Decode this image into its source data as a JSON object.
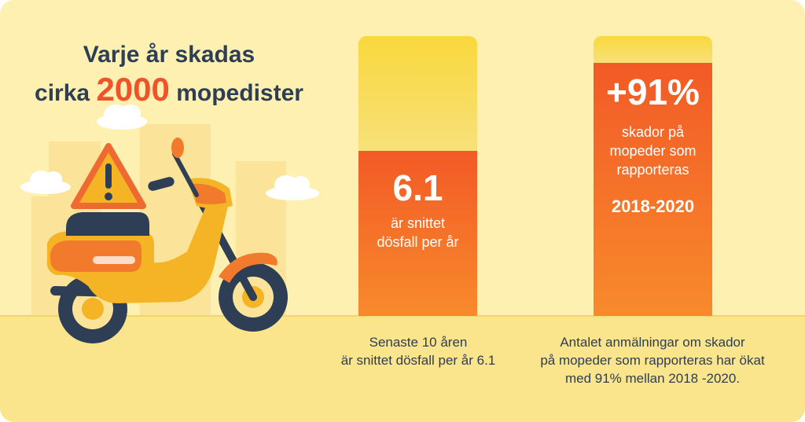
{
  "headline": {
    "line1": "Varje år skadas",
    "line2_prefix": "cirka",
    "highlight": "2000",
    "line2_suffix": "mopedister"
  },
  "panel_left": {
    "value": "6.1",
    "label_line1": "är snittet",
    "label_line2": "dösfall per år",
    "caption_line1": "Senaste 10 åren",
    "caption_line2": "är snittet dösfall per år 6.1"
  },
  "panel_right": {
    "value": "+91%",
    "label_line1": "skador på",
    "label_line2": "mopeder som",
    "label_line3": "rapporteras",
    "period": "2018-2020",
    "caption_line1": "Antalet anmälningar om skador",
    "caption_line2": "på mopeder som rapporteras har ökat",
    "caption_line3": "med 91% mellan 2018 -2020."
  },
  "colors": {
    "background": "#fdf0b0",
    "ground": "#fae48c",
    "accent_orange": "#f0522a",
    "accent_yellow": "#f9d83c",
    "text_dark": "#2d3e55"
  },
  "icons": [
    "warning-icon",
    "moped-illustration",
    "cloud-icon",
    "building-icon"
  ]
}
